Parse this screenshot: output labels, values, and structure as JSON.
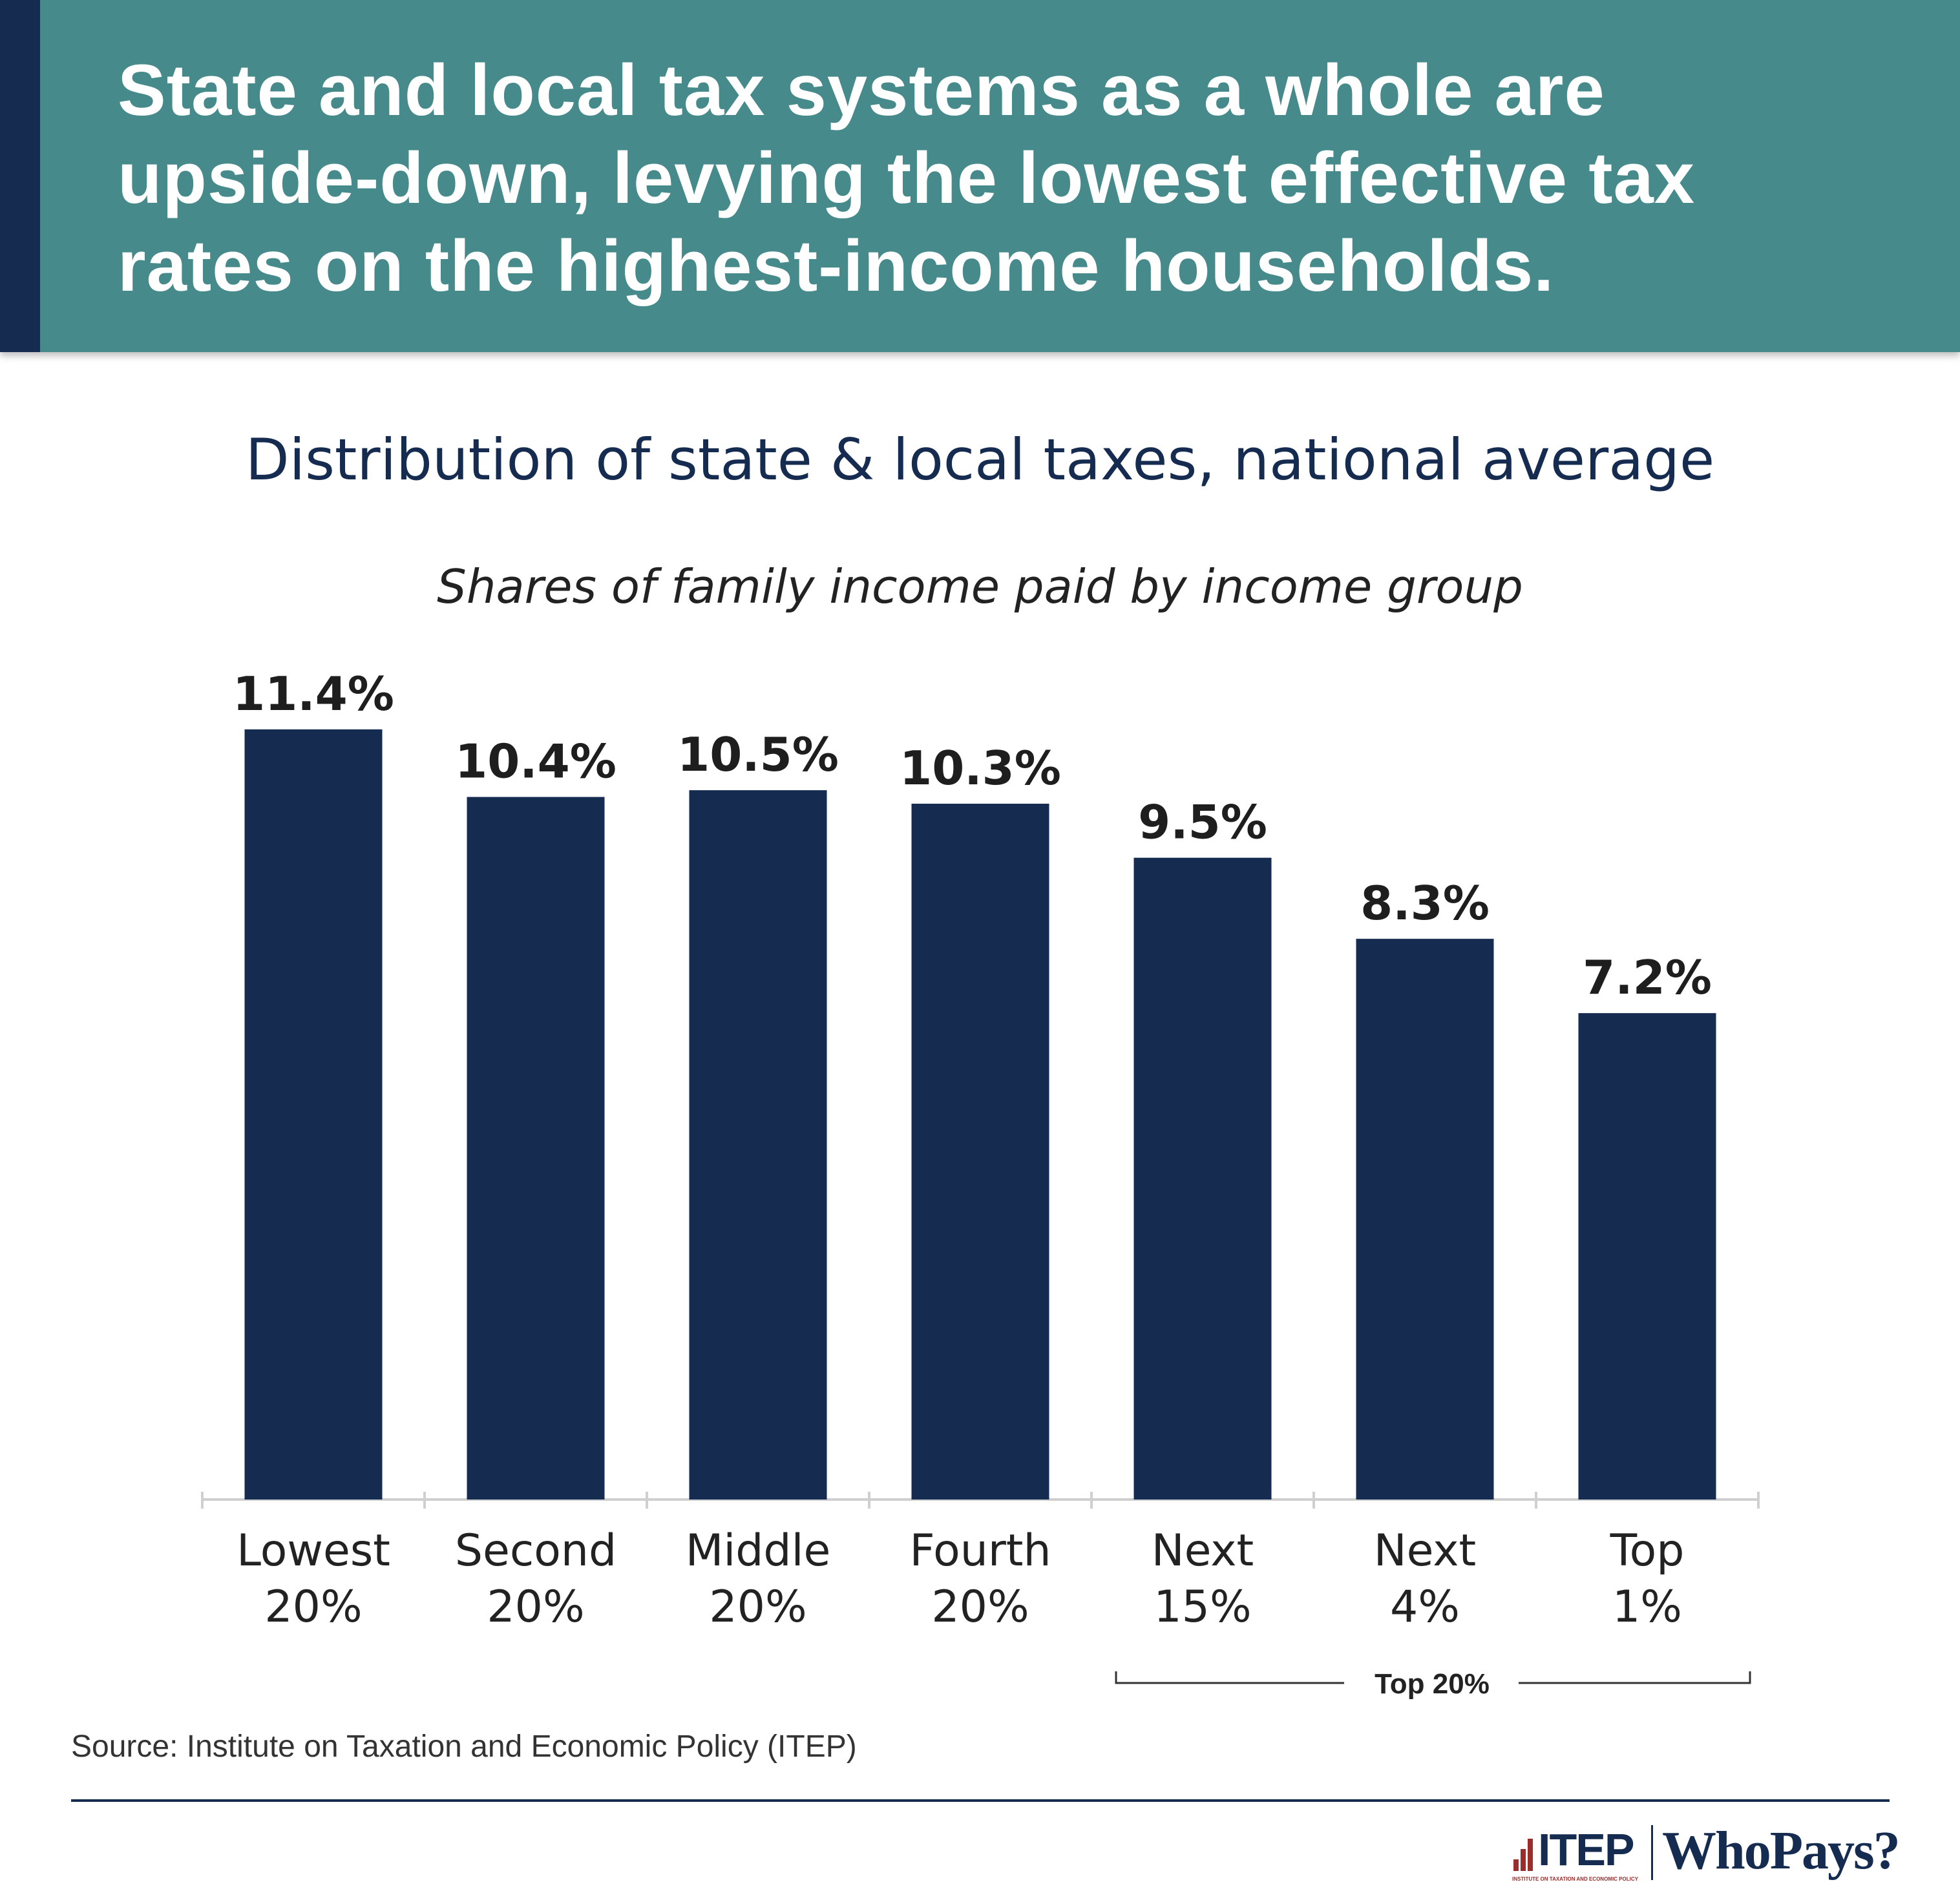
{
  "header": {
    "headline_lines": [
      "State and local tax systems as a whole are",
      "upside-down, levying the lowest effective tax",
      "rates on the highest-income households."
    ]
  },
  "colors": {
    "header_bg": "#478a8c",
    "accent_navy": "#152b4f",
    "bar": "#152b4f",
    "logo_red": "#9b2d2d"
  },
  "chart_data": {
    "type": "bar",
    "title": "Distribution of state & local taxes, national average",
    "subtitle": "Shares of family income paid by income group",
    "categories": [
      [
        "Lowest",
        "20%"
      ],
      [
        "Second",
        "20%"
      ],
      [
        "Middle",
        "20%"
      ],
      [
        "Fourth",
        "20%"
      ],
      [
        "Next",
        "15%"
      ],
      [
        "Next",
        "4%"
      ],
      [
        "Top",
        "1%"
      ]
    ],
    "values": [
      11.4,
      10.4,
      10.5,
      10.3,
      9.5,
      8.3,
      7.2
    ],
    "data_labels": [
      "11.4%",
      "10.4%",
      "10.5%",
      "10.3%",
      "9.5%",
      "8.3%",
      "7.2%"
    ],
    "unit": "%",
    "ylim": [
      0,
      11.4
    ],
    "grid": false,
    "group_bracket": {
      "label": "Top 20%",
      "spans": [
        "Next 15%",
        "Next 4%",
        "Top 1%"
      ]
    }
  },
  "footer": {
    "source": "Source: Institute on Taxation and Economic Policy (ITEP)",
    "logo_itep": "ITEP",
    "logo_itep_sub": "INSTITUTE ON TAXATION AND ECONOMIC POLICY",
    "logo_whopays": "WhoPays?"
  }
}
